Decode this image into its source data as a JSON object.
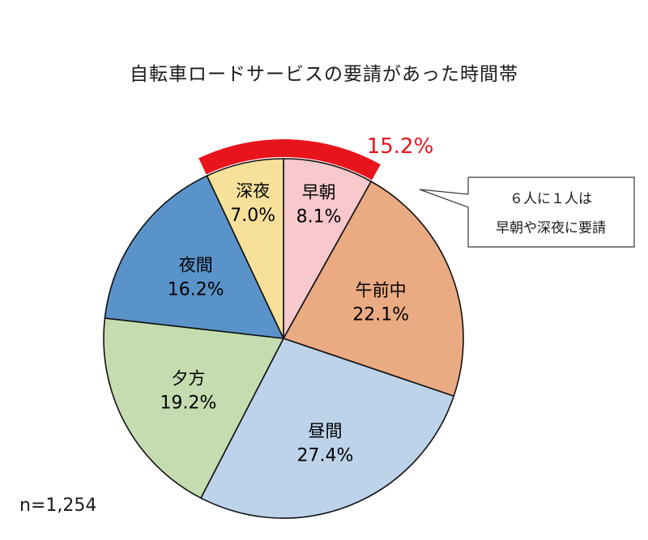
{
  "chart_data": {
    "type": "pie",
    "title": "自転車ロードサービスの要請があった時間帯",
    "sample_size": "n=1,254",
    "slices": [
      {
        "label": "早朝",
        "value": 8.1,
        "display": "8.1%",
        "color": "#f7c8cc"
      },
      {
        "label": "午前中",
        "value": 22.1,
        "display": "22.1%",
        "color": "#eaaa82"
      },
      {
        "label": "昼間",
        "value": 27.4,
        "display": "27.4%",
        "color": "#bcd3ea"
      },
      {
        "label": "夕方",
        "value": 19.2,
        "display": "19.2%",
        "color": "#c5dcb0"
      },
      {
        "label": "夜間",
        "value": 16.2,
        "display": "16.2%",
        "color": "#5a93c9"
      },
      {
        "label": "深夜",
        "value": 7.0,
        "display": "7.0%",
        "color": "#f7e19a"
      }
    ],
    "highlight": {
      "label": "15.2%",
      "slices": [
        "深夜",
        "早朝"
      ],
      "color": "#e8141c"
    },
    "callout": {
      "line1": "６人に１人は",
      "line2": "早朝や深夜に要請"
    }
  }
}
